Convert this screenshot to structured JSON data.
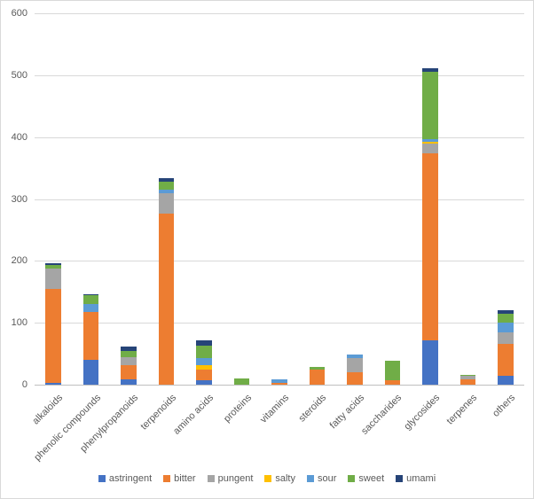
{
  "chart_data": {
    "type": "bar",
    "stacked": true,
    "title": "",
    "xlabel": "",
    "ylabel": "",
    "ylim": [
      0,
      600
    ],
    "yticks": [
      0,
      100,
      200,
      300,
      400,
      500,
      600
    ],
    "grid": true,
    "legend_position": "bottom",
    "categories": [
      "alkaloids",
      "phenolic compounds",
      "phenylpropanoids",
      "terpenoids",
      "amino acids",
      "proteins",
      "vitamins",
      "steroids",
      "fatty acids",
      "saccharides",
      "glycosides",
      "terpenes",
      "others"
    ],
    "series": [
      {
        "name": "astringent",
        "color": "#4472C4",
        "values": [
          3,
          40,
          8,
          0,
          7,
          0,
          0,
          0,
          0,
          0,
          72,
          0,
          15
        ]
      },
      {
        "name": "bitter",
        "color": "#ED7D31",
        "values": [
          152,
          78,
          24,
          276,
          18,
          0,
          3,
          24,
          20,
          7,
          302,
          8,
          51
        ]
      },
      {
        "name": "pungent",
        "color": "#A5A5A5",
        "values": [
          33,
          0,
          13,
          34,
          0,
          0,
          0,
          0,
          23,
          0,
          15,
          6,
          18
        ]
      },
      {
        "name": "salty",
        "color": "#FFC000",
        "values": [
          0,
          0,
          0,
          0,
          7,
          0,
          0,
          0,
          0,
          0,
          3,
          0,
          0
        ]
      },
      {
        "name": "sour",
        "color": "#5B9BD5",
        "values": [
          0,
          12,
          0,
          5,
          11,
          0,
          5,
          0,
          6,
          0,
          4,
          0,
          16
        ]
      },
      {
        "name": "sweet",
        "color": "#70AD47",
        "values": [
          5,
          14,
          10,
          13,
          20,
          10,
          0,
          4,
          0,
          32,
          110,
          2,
          14
        ]
      },
      {
        "name": "umami",
        "color": "#264478",
        "values": [
          3,
          2,
          6,
          5,
          8,
          0,
          0,
          0,
          0,
          0,
          5,
          0,
          6
        ]
      }
    ],
    "colors": {
      "axis_text": "#595959",
      "gridline": "#D9D9D9",
      "axis_line": "#BFBFBF",
      "background": "#FFFFFF"
    }
  }
}
